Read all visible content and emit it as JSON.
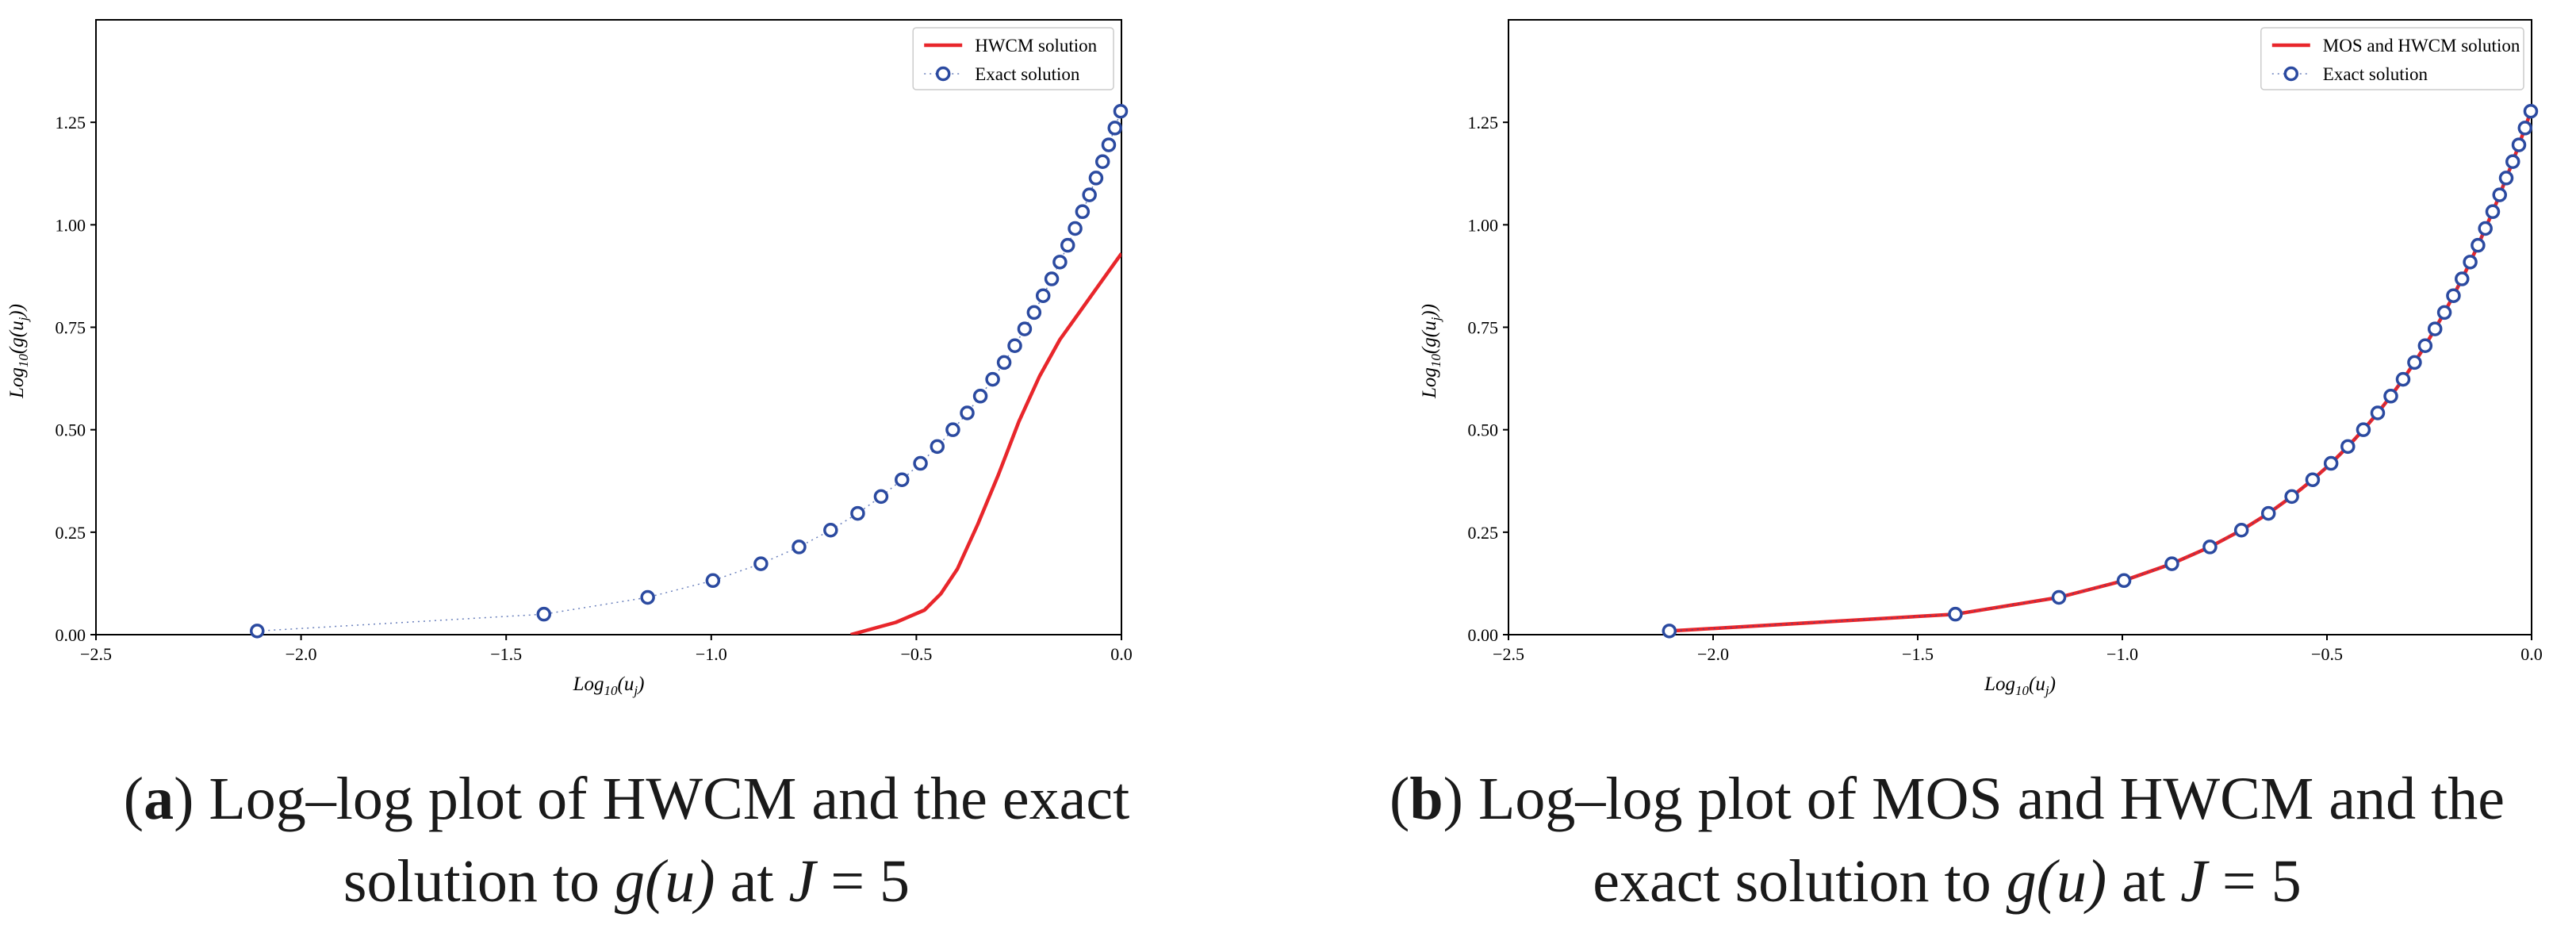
{
  "chart_data": [
    {
      "type": "line",
      "xlabel": "Log10(uj)",
      "ylabel": "Log10(g(uj))",
      "xlim": [
        -2.5,
        0.0
      ],
      "ylim": [
        0.0,
        1.5
      ],
      "x_ticks": [
        -2.5,
        -2.0,
        -1.5,
        -1.0,
        -0.5,
        0.0
      ],
      "x_tick_labels": [
        "−2.5",
        "−2.0",
        "−1.5",
        "−1.0",
        "−0.5",
        "0.0"
      ],
      "y_ticks": [
        0.0,
        0.25,
        0.5,
        0.75,
        1.0,
        1.25
      ],
      "y_tick_labels": [
        "0.00",
        "0.25",
        "0.50",
        "0.75",
        "1.00",
        "1.25"
      ],
      "legend_position": "top-right",
      "series": [
        {
          "name": "HWCM solution",
          "style": "line",
          "color": "#e8262b",
          "x": [
            -0.66,
            -0.55,
            -0.48,
            -0.44,
            -0.4,
            -0.35,
            -0.3,
            -0.25,
            -0.2,
            -0.15,
            -0.1,
            -0.05,
            0.0
          ],
          "y": [
            0.0,
            0.03,
            0.06,
            0.1,
            0.16,
            0.27,
            0.39,
            0.52,
            0.63,
            0.72,
            0.79,
            0.86,
            0.93
          ]
        },
        {
          "name": "Exact solution",
          "style": "markers-dotted",
          "color": "#2b4aa0",
          "x": [
            -2.107,
            -1.408,
            -1.155,
            -0.996,
            -0.879,
            -0.786,
            -0.709,
            -0.643,
            -0.586,
            -0.535,
            -0.49,
            -0.449,
            -0.411,
            -0.376,
            -0.344,
            -0.314,
            -0.286,
            -0.26,
            -0.236,
            -0.213,
            -0.191,
            -0.17,
            -0.15,
            -0.131,
            -0.113,
            -0.095,
            -0.078,
            -0.062,
            -0.046,
            -0.031,
            -0.016,
            -0.002
          ],
          "y": [
            0.009,
            0.05,
            0.091,
            0.132,
            0.173,
            0.214,
            0.255,
            0.296,
            0.337,
            0.378,
            0.418,
            0.459,
            0.5,
            0.541,
            0.582,
            0.623,
            0.664,
            0.705,
            0.746,
            0.786,
            0.827,
            0.868,
            0.909,
            0.95,
            0.991,
            1.032,
            1.073,
            1.114,
            1.154,
            1.195,
            1.236,
            1.277
          ]
        }
      ],
      "caption": {
        "tag": "a",
        "line1": "Log–log plot of HWCM and the exact",
        "line2_prefix": "solution to ",
        "line2_func": "g(u)",
        "line2_mid": " at ",
        "line2_var": "J",
        "line2_suffix": " = 5"
      }
    },
    {
      "type": "line",
      "xlabel": "Log10(uj)",
      "ylabel": "Log10(g(uj))",
      "xlim": [
        -2.5,
        0.0
      ],
      "ylim": [
        0.0,
        1.5
      ],
      "x_ticks": [
        -2.5,
        -2.0,
        -1.5,
        -1.0,
        -0.5,
        0.0
      ],
      "x_tick_labels": [
        "−2.5",
        "−2.0",
        "−1.5",
        "−1.0",
        "−0.5",
        "0.0"
      ],
      "y_ticks": [
        0.0,
        0.25,
        0.5,
        0.75,
        1.0,
        1.25
      ],
      "y_tick_labels": [
        "0.00",
        "0.25",
        "0.50",
        "0.75",
        "1.00",
        "1.25"
      ],
      "legend_position": "top-right",
      "series": [
        {
          "name": "MOS and HWCM solution",
          "style": "line",
          "color": "#e8262b",
          "x": [
            -2.107,
            -1.408,
            -1.155,
            -0.996,
            -0.879,
            -0.786,
            -0.709,
            -0.643,
            -0.586,
            -0.535,
            -0.49,
            -0.449,
            -0.411,
            -0.376,
            -0.344,
            -0.314,
            -0.286,
            -0.26,
            -0.236,
            -0.213,
            -0.191,
            -0.17,
            -0.15,
            -0.131,
            -0.113,
            -0.095,
            -0.078,
            -0.062,
            -0.046,
            -0.031,
            -0.016,
            -0.002
          ],
          "y": [
            0.009,
            0.05,
            0.091,
            0.132,
            0.173,
            0.214,
            0.255,
            0.296,
            0.337,
            0.378,
            0.418,
            0.459,
            0.5,
            0.541,
            0.582,
            0.623,
            0.664,
            0.705,
            0.746,
            0.786,
            0.827,
            0.868,
            0.909,
            0.95,
            0.991,
            1.032,
            1.073,
            1.114,
            1.154,
            1.195,
            1.236,
            1.277
          ]
        },
        {
          "name": "Exact solution",
          "style": "markers-dotted",
          "color": "#2b4aa0",
          "x": [
            -2.107,
            -1.408,
            -1.155,
            -0.996,
            -0.879,
            -0.786,
            -0.709,
            -0.643,
            -0.586,
            -0.535,
            -0.49,
            -0.449,
            -0.411,
            -0.376,
            -0.344,
            -0.314,
            -0.286,
            -0.26,
            -0.236,
            -0.213,
            -0.191,
            -0.17,
            -0.15,
            -0.131,
            -0.113,
            -0.095,
            -0.078,
            -0.062,
            -0.046,
            -0.031,
            -0.016,
            -0.002
          ],
          "y": [
            0.009,
            0.05,
            0.091,
            0.132,
            0.173,
            0.214,
            0.255,
            0.296,
            0.337,
            0.378,
            0.418,
            0.459,
            0.5,
            0.541,
            0.582,
            0.623,
            0.664,
            0.705,
            0.746,
            0.786,
            0.827,
            0.868,
            0.909,
            0.95,
            0.991,
            1.032,
            1.073,
            1.114,
            1.154,
            1.195,
            1.236,
            1.277
          ]
        }
      ],
      "caption": {
        "tag": "b",
        "line1": "Log–log plot of MOS and HWCM and the",
        "line2_prefix": "exact solution to ",
        "line2_func": "g(u)",
        "line2_mid": " at ",
        "line2_var": "J",
        "line2_suffix": " = 5"
      }
    }
  ]
}
